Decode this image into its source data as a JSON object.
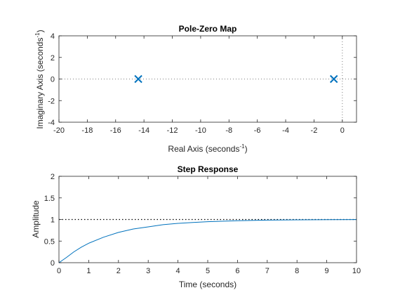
{
  "colors": {
    "series": "#0072bd",
    "axes": "#262626",
    "reference_line": "#000000",
    "background": "#ffffff"
  },
  "chart_data": [
    {
      "type": "scatter",
      "title": "Pole-Zero Map",
      "xlabel": {
        "main": "Real Axis (seconds",
        "sup": "-1",
        "tail": ")"
      },
      "ylabel": {
        "main": "Imaginary Axis (seconds",
        "sup": "-1",
        "tail": ")"
      },
      "xlim": [
        -20,
        1
      ],
      "ylim": [
        -4,
        4
      ],
      "xticks": [
        -20,
        -18,
        -16,
        -14,
        -12,
        -10,
        -8,
        -6,
        -4,
        -2,
        0
      ],
      "yticks": [
        -4,
        -2,
        0,
        2,
        4
      ],
      "grid": false,
      "marker": "x",
      "poles": [
        {
          "x": -14.4,
          "y": 0
        },
        {
          "x": -0.6,
          "y": 0
        }
      ],
      "zeros": [],
      "reference_lines": {
        "real_axis_y": 0,
        "imag_axis_x": 0,
        "style": "dotted"
      }
    },
    {
      "type": "line",
      "title": "Step Response",
      "xlabel": "Time (seconds)",
      "ylabel": "Amplitude",
      "xlim": [
        0,
        10
      ],
      "ylim": [
        0,
        2
      ],
      "xticks": [
        0,
        1,
        2,
        3,
        4,
        5,
        6,
        7,
        8,
        9,
        10
      ],
      "yticks": [
        0,
        0.5,
        1,
        1.5,
        2
      ],
      "grid": false,
      "steady_state": 1,
      "series": [
        {
          "x": [
            0,
            0.25,
            0.5,
            0.75,
            1,
            1.5,
            2,
            2.5,
            3,
            3.5,
            4,
            4.5,
            5,
            6,
            7,
            8,
            9,
            10
          ],
          "values": [
            0,
            0.12,
            0.25,
            0.36,
            0.45,
            0.59,
            0.7,
            0.78,
            0.83,
            0.88,
            0.91,
            0.93,
            0.95,
            0.97,
            0.985,
            0.992,
            0.996,
            0.998
          ]
        }
      ]
    }
  ]
}
